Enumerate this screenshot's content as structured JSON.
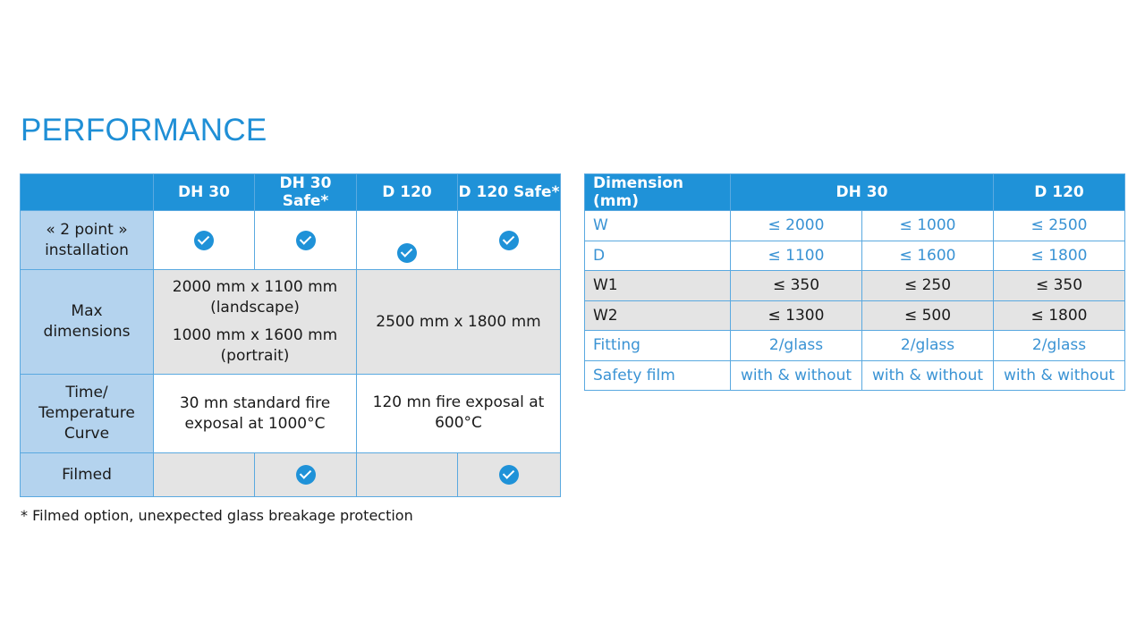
{
  "title": "PERFORMANCE",
  "left_table": {
    "headers": [
      "",
      "DH 30",
      "DH 30 Safe*",
      "D 120",
      "D 120 Safe*"
    ],
    "rows": {
      "installation": {
        "label_line1": "« 2 point »",
        "label_line2": "installation",
        "checks": [
          true,
          true,
          true,
          true
        ]
      },
      "max_dimensions": {
        "label_line1": "Max",
        "label_line2": "dimensions",
        "dh_line1": "2000 mm x 1100 mm",
        "dh_line2": "(landscape)",
        "dh_line3": "1000 mm x 1600 mm",
        "dh_line4": "(portrait)",
        "d_value": "2500 mm x 1800 mm"
      },
      "time_temp": {
        "label_line1": "Time/",
        "label_line2": "Temperature",
        "label_line3": "Curve",
        "dh_line1": "30 mn standard fire",
        "dh_line2": "exposal at 1000°C",
        "d_line1": "120 mn fire exposal at",
        "d_line2": "600°C"
      },
      "filmed": {
        "label": "Filmed",
        "checks": [
          false,
          true,
          false,
          true
        ]
      }
    }
  },
  "right_table": {
    "headers": [
      "Dimension (mm)",
      "DH 30",
      "D 120"
    ],
    "rows": [
      {
        "label": "W",
        "values": [
          "≤ 2000",
          "≤ 1000",
          "≤ 2500"
        ]
      },
      {
        "label": "D",
        "values": [
          "≤ 1100",
          "≤ 1600",
          "≤ 1800"
        ]
      },
      {
        "label": "W1",
        "values": [
          "≤ 350",
          "≤ 250",
          "≤ 350"
        ]
      },
      {
        "label": "W2",
        "values": [
          "≤ 1300",
          "≤ 500",
          "≤ 1800"
        ]
      },
      {
        "label": "Fitting",
        "values": [
          "2/glass",
          "2/glass",
          "2/glass"
        ]
      },
      {
        "label": "Safety film",
        "values": [
          "with & without",
          "with & without",
          "with & without"
        ]
      }
    ]
  },
  "footnote": "* Filmed option, unexpected glass breakage protection",
  "colors": {
    "accent": "#1f92d8",
    "row_header": "#b4d3ee",
    "grey_cell": "#e4e4e4",
    "title": "#1f8fd6"
  }
}
